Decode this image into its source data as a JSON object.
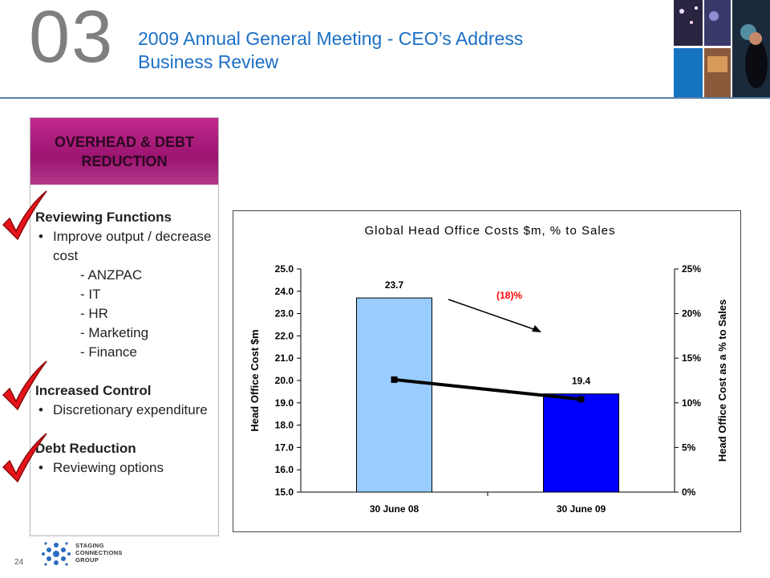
{
  "header": {
    "section_number": "03",
    "title_line1": "2009 Annual General Meeting - CEO’s Address",
    "title_line2": "Business Review"
  },
  "sidebar": {
    "heading": "OVERHEAD & DEBT REDUCTION",
    "groups": [
      {
        "title": "Reviewing Functions",
        "bullets": [
          "Improve output / decrease cost"
        ],
        "subitems": [
          "- ANZPAC",
          "- IT",
          "- HR",
          "- Marketing",
          "- Finance"
        ]
      },
      {
        "title": "Increased Control",
        "bullets": [
          "Discretionary expenditure"
        ]
      },
      {
        "title": "Debt Reduction",
        "bullets": [
          "Reviewing options"
        ]
      }
    ],
    "check_color": "#e8141b"
  },
  "chart_data": {
    "type": "bar",
    "title": "Global Head Office Costs $m, % to Sales",
    "categories": [
      "30 June 08",
      "30 June 09"
    ],
    "series": [
      {
        "name": "Head Office Cost $m",
        "type": "bar",
        "values": [
          23.7,
          19.4
        ],
        "colors": [
          "#99ccff",
          "#0000ff"
        ]
      },
      {
        "name": "Head Office Cost as a % to Sales",
        "type": "line",
        "axis": "right",
        "values": [
          12.6,
          10.4
        ],
        "color": "#000000"
      }
    ],
    "data_labels": [
      "23.7",
      "19.4"
    ],
    "ylabel": "Head Office Cost $m",
    "ylabel_right": "Head Office Cost as a % to Sales",
    "ylim": [
      15.0,
      25.0
    ],
    "ylim_right": [
      0,
      25
    ],
    "yticks": [
      "15.0",
      "16.0",
      "17.0",
      "18.0",
      "19.0",
      "20.0",
      "21.0",
      "22.0",
      "23.0",
      "24.0",
      "25.0"
    ],
    "yticks_right": [
      "0%",
      "5%",
      "10%",
      "15%",
      "20%",
      "25%"
    ],
    "annotation": {
      "text": "(18)%",
      "color": "#ff0000"
    }
  },
  "footer": {
    "page_number": "24",
    "logo_lines": [
      "STAGING",
      "CONNECTIONS",
      "GROUP"
    ]
  }
}
